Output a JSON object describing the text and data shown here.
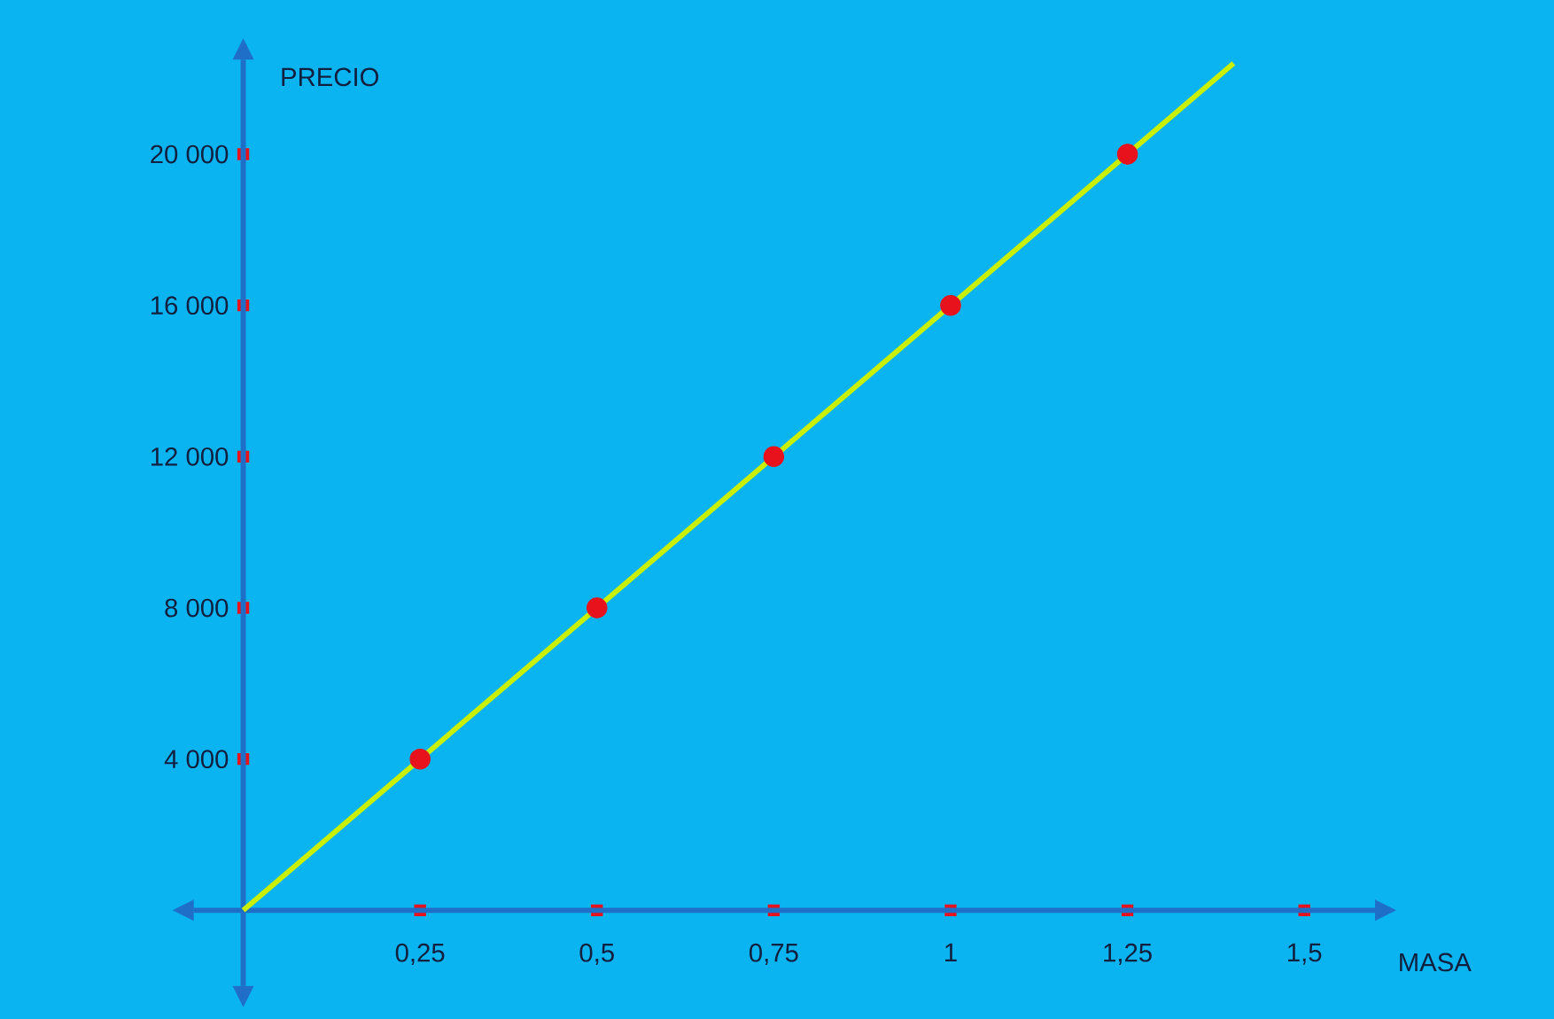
{
  "chart_data": {
    "type": "scatter",
    "xlabel": "MASA",
    "ylabel": "PRECIO",
    "xlim": [
      -0.07,
      1.6
    ],
    "ylim": [
      -2000,
      22500
    ],
    "xticks": [
      {
        "value": 0.25,
        "label": "0,25"
      },
      {
        "value": 0.5,
        "label": "0,5"
      },
      {
        "value": 0.75,
        "label": "0,75"
      },
      {
        "value": 1,
        "label": "1"
      },
      {
        "value": 1.25,
        "label": "1,25"
      },
      {
        "value": 1.5,
        "label": "1,5"
      }
    ],
    "yticks": [
      {
        "value": 4000,
        "label": "4 000"
      },
      {
        "value": 8000,
        "label": "8 000"
      },
      {
        "value": 12000,
        "label": "12 000"
      },
      {
        "value": 16000,
        "label": "16 000"
      },
      {
        "value": 20000,
        "label": "20 000"
      }
    ],
    "series": [
      {
        "type": "line",
        "color": "#c8f000",
        "x": [
          0,
          1.4
        ],
        "values": [
          0,
          22400
        ]
      },
      {
        "color": "#e8121c",
        "marker": "circle",
        "x": [
          0.25,
          0.5,
          0.75,
          1,
          1.25
        ],
        "values": [
          4000,
          8000,
          12000,
          16000,
          20000
        ]
      }
    ]
  }
}
